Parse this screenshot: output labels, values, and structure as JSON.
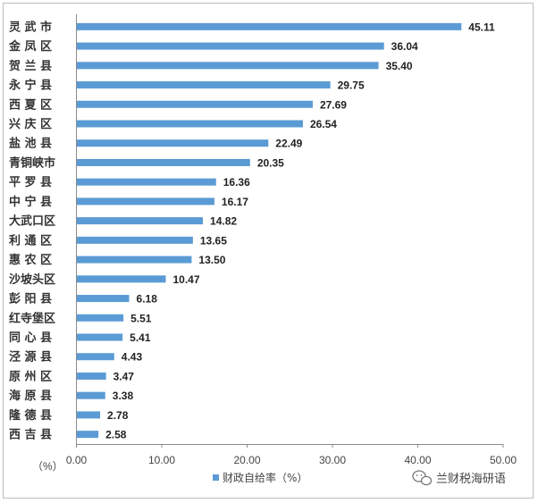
{
  "chart_data": {
    "type": "bar",
    "orientation": "horizontal",
    "categories": [
      "灵 武 市",
      "金 凤 区",
      "贺 兰 县",
      "永 宁 县",
      "西 夏 区",
      "兴 庆 区",
      "盐 池 县",
      "青铜峡市",
      "平 罗 县",
      "中 宁 县",
      "大武口区",
      "利 通 区",
      "惠 农 区",
      "沙坡头区",
      "彭 阳 县",
      "红寺堡区",
      "同 心 县",
      "泾 源 县",
      "原 州 区",
      "海 原 县",
      "隆 德 县",
      "西 吉 县"
    ],
    "values": [
      45.11,
      36.04,
      35.4,
      29.75,
      27.69,
      26.54,
      22.49,
      20.35,
      16.36,
      16.17,
      14.82,
      13.65,
      13.5,
      10.47,
      6.18,
      5.51,
      5.41,
      4.43,
      3.47,
      3.38,
      2.78,
      2.58
    ],
    "value_labels": [
      "45.11",
      "36.04",
      "35.40",
      "29.75",
      "27.69",
      "26.54",
      "22.49",
      "20.35",
      "16.36",
      "16.17",
      "14.82",
      "13.65",
      "13.50",
      "10.47",
      "6.18",
      "5.51",
      "5.41",
      "4.43",
      "3.47",
      "3.38",
      "2.78",
      "2.58"
    ],
    "x_ticks": [
      "0.00",
      "10.00",
      "20.00",
      "30.00",
      "40.00",
      "50.00"
    ],
    "xlim": [
      0,
      50
    ],
    "x_unit_label": "（%）",
    "series": [
      {
        "name": "财政自给率（%）",
        "color": "#5b9bd5"
      }
    ],
    "legend_position": "bottom",
    "grid": false
  },
  "watermark": {
    "text": "兰财税海研语",
    "icon": "wechat-icon"
  }
}
